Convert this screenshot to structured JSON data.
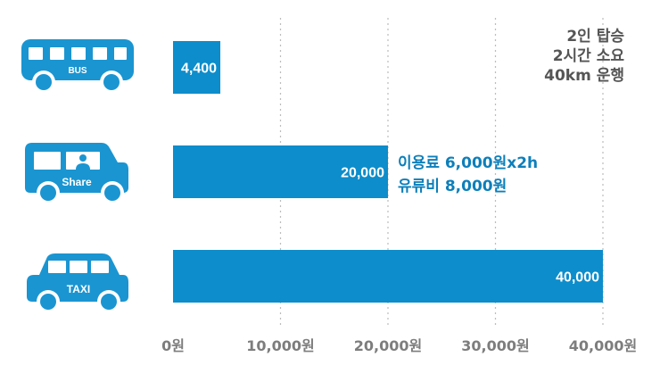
{
  "chart_data": {
    "type": "bar",
    "orientation": "horizontal",
    "categories": [
      "BUS",
      "Share",
      "TAXI"
    ],
    "values": [
      4400,
      20000,
      40000
    ],
    "value_labels": [
      "4,400",
      "20,000",
      "40,000"
    ],
    "xlim": [
      0,
      40000
    ],
    "x_ticks": [
      0,
      10000,
      20000,
      30000,
      40000
    ],
    "x_tick_labels": [
      "0원",
      "10,000원",
      "20,000원",
      "30,000원",
      "40,000원"
    ],
    "grid": "vertical-dotted",
    "bar_color": "#0d8dcb",
    "annotations": {
      "conditions": [
        "2인 탑승",
        "2시간 소요",
        "40km 운행"
      ],
      "share_breakdown": [
        "이용료 6,000원x2h",
        "유류비 8,000원"
      ]
    }
  },
  "icons": [
    {
      "name": "bus-icon",
      "text": "BUS"
    },
    {
      "name": "car-share-icon",
      "text": "Share"
    },
    {
      "name": "taxi-icon",
      "text": "TAXI"
    }
  ],
  "colors": {
    "accent": "#0d8dcb",
    "icon": "#1a95d1",
    "annotation": "#0d7fba",
    "tick": "#7d7d7d"
  }
}
